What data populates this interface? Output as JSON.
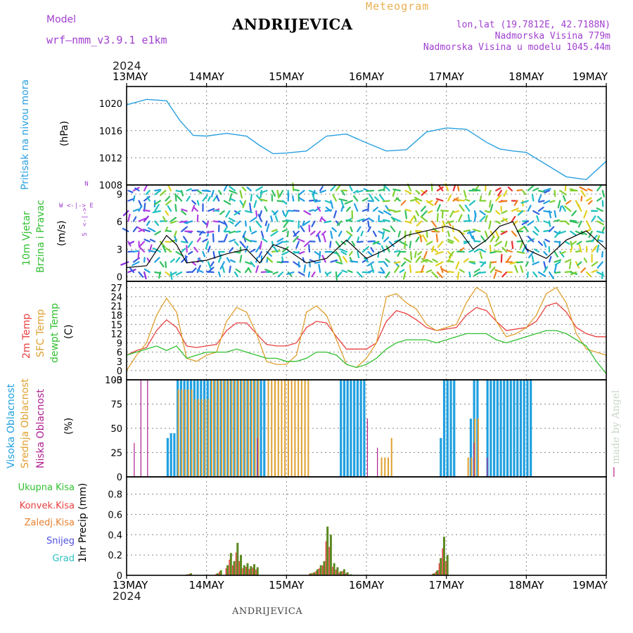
{
  "header": {
    "title": "ANDRIJEVICA",
    "model_label": "Model",
    "model_name": "wrf—nmm_v3.9.1  e1km",
    "meteogram_label": "Meteogram",
    "lonlat": "lon,lat (19.7812E, 42.7188N)",
    "altitude": "Nadmorska Visina 779m",
    "model_altitude": "Nadmorska Visina u modelu 1045.44m",
    "year": "2024",
    "footer": "ANDRIJEVICA",
    "made_by": "made by Angel"
  },
  "colors": {
    "pressure": "#2aa0e0",
    "wind_label": "#30c030",
    "temp2m": "#e84040",
    "sfc": "#e0a030",
    "dew": "#30c030",
    "high_cloud": "#20a0e0",
    "mid_cloud": "#e0a030",
    "low_cloud": "#b02090",
    "total_precip": "#30c030",
    "conv_precip": "#e84040",
    "frozen_precip": "#e88030",
    "snow": "#5050e0",
    "hail": "#30c0c0",
    "precip_bar": "#5a8a20"
  },
  "panel_labels": {
    "pressure": [
      "Pritisak na nivou mora",
      "(hPa)"
    ],
    "wind": [
      "10m  Vjetar",
      "Brzina i Pravac",
      "(m/s)"
    ],
    "wind_compass": [
      "N",
      "<-|->",
      "S",
      "W  <-|->  E"
    ],
    "temp": [
      "2m Temp",
      "SFC Temp",
      "dewpt Temp",
      "(C)"
    ],
    "cloud": [
      "Visoka Oblacnost",
      "Srednja Oblacnost",
      "Niska Oblacnost",
      "(%)"
    ],
    "precip": [
      "Ukupna Kisa",
      "Konvek.Kisa",
      "Zaledj.Kisa",
      "Snijeg",
      "Grad",
      "1hr Precip (mm)"
    ]
  },
  "chart_data": [
    {
      "type": "line",
      "name": "pressure",
      "x_ticks": [
        "13MAY",
        "14MAY",
        "15MAY",
        "16MAY",
        "17MAY",
        "18MAY",
        "19MAY"
      ],
      "ylabel": "(hPa)",
      "ylim": [
        1008,
        1022.5
      ],
      "y_ticks": [
        1008,
        1012,
        1016,
        1020
      ],
      "grid": true,
      "x_hours": [
        0,
        6,
        12,
        16,
        20,
        24,
        30,
        36,
        40,
        44,
        48,
        54,
        60,
        66,
        72,
        78,
        84,
        90,
        96,
        102,
        108,
        112,
        116,
        120,
        126,
        132,
        138,
        144
      ],
      "values": [
        1019.8,
        1020.6,
        1020.4,
        1017.5,
        1015.3,
        1015.2,
        1015.6,
        1015.2,
        1013.8,
        1012.6,
        1012.7,
        1013.0,
        1015.2,
        1015.5,
        1014.2,
        1013.0,
        1013.2,
        1015.8,
        1016.4,
        1016.2,
        1014.3,
        1013.3,
        1013.0,
        1012.8,
        1011.0,
        1009.2,
        1008.8,
        1011.5
      ]
    },
    {
      "type": "line",
      "name": "wind_speed",
      "ylabel": "(m/s)",
      "ylim": [
        -0.5,
        10
      ],
      "y_ticks": [
        0,
        3,
        6,
        9
      ],
      "grid": true,
      "x_hours": [
        0,
        6,
        12,
        15,
        18,
        24,
        30,
        36,
        40,
        44,
        48,
        54,
        60,
        66,
        72,
        78,
        84,
        90,
        96,
        100,
        104,
        108,
        112,
        116,
        120,
        126,
        132,
        138,
        144
      ],
      "values": [
        1.0,
        1.2,
        4.5,
        3.5,
        1.5,
        1.8,
        2.5,
        3.0,
        1.5,
        3.5,
        3.0,
        1.5,
        2.0,
        4.0,
        2.0,
        3.0,
        4.5,
        5.0,
        5.5,
        5.0,
        3.0,
        4.0,
        5.5,
        6.0,
        3.0,
        2.0,
        4.0,
        5.0,
        3.0
      ]
    },
    {
      "type": "line",
      "name": "temperature",
      "ylabel": "(C)",
      "ylim": [
        -3,
        29
      ],
      "y_ticks": [
        -3,
        0,
        3,
        6,
        9,
        12,
        15,
        18,
        21,
        24,
        27
      ],
      "grid": true,
      "x_hours": [
        0,
        3,
        6,
        9,
        12,
        15,
        18,
        21,
        24,
        27,
        30,
        33,
        36,
        39,
        42,
        45,
        48,
        51,
        54,
        57,
        60,
        63,
        66,
        69,
        72,
        75,
        78,
        81,
        84,
        87,
        90,
        93,
        96,
        99,
        102,
        105,
        108,
        111,
        114,
        117,
        120,
        123,
        126,
        129,
        132,
        135,
        138,
        141,
        144
      ],
      "series": [
        {
          "name": "2m Temp",
          "values": [
            5,
            6.5,
            7.5,
            13,
            16.5,
            14,
            8,
            7.5,
            8,
            8.5,
            13,
            15.5,
            15.5,
            12,
            8.5,
            8,
            8,
            9,
            14,
            16,
            15.5,
            11,
            7,
            7,
            7,
            9,
            16,
            19.5,
            18.5,
            16.5,
            14,
            13,
            13.5,
            14,
            18,
            20.5,
            19.5,
            16,
            13,
            13.5,
            14,
            16,
            21,
            22,
            19,
            14,
            12,
            11,
            11
          ]
        },
        {
          "name": "SFC Temp",
          "values": [
            0,
            5,
            9,
            18,
            23.5,
            19,
            4,
            3,
            5,
            6,
            16,
            20.5,
            19,
            12,
            3,
            2,
            2,
            5,
            19,
            21,
            18,
            10,
            2,
            1,
            4,
            9,
            24,
            25,
            22,
            20,
            15,
            13,
            14,
            15,
            22,
            27,
            25,
            16,
            11,
            12,
            14,
            18,
            25,
            27,
            22,
            12,
            7,
            6,
            5
          ]
        },
        {
          "name": "dewpt Temp",
          "values": [
            5,
            6,
            7,
            8,
            6.5,
            8,
            4,
            5,
            6,
            6,
            6,
            7,
            6,
            5,
            4,
            4,
            3,
            3,
            4,
            6,
            6,
            5,
            2,
            1,
            2,
            4,
            7,
            9,
            10,
            10,
            10,
            9,
            10,
            11,
            12,
            12,
            12,
            10,
            9,
            10,
            11,
            12,
            13,
            13,
            12,
            10,
            8,
            3,
            -1
          ]
        }
      ]
    },
    {
      "type": "bar",
      "name": "cloud_cover",
      "ylabel": "(%)",
      "ylim": [
        0,
        100
      ],
      "y_ticks": [
        0,
        25,
        50,
        75,
        100
      ],
      "grid": true,
      "series": [
        {
          "name": "Visoka Oblacnost",
          "segments": [
            [
              12,
              13,
              40
            ],
            [
              13,
              15,
              45
            ],
            [
              15,
              42,
              100
            ],
            [
              64,
              72,
              100
            ],
            [
              94,
              95,
              40
            ],
            [
              95,
              99,
              100
            ],
            [
              103,
              104,
              60
            ],
            [
              104,
              106,
              100
            ],
            [
              108,
              122,
              100
            ]
          ]
        },
        {
          "name": "Srednja Oblacnost",
          "segments": [
            [
              15,
              20,
              90
            ],
            [
              20,
              25,
              80
            ],
            [
              25,
              40,
              100
            ],
            [
              42,
              55,
              100
            ],
            [
              76,
              79,
              20
            ],
            [
              79,
              80,
              40
            ],
            [
              102,
              104,
              20
            ],
            [
              104,
              106,
              60
            ]
          ]
        },
        {
          "name": "Niska Oblacnost",
          "segments": [
            [
              2,
              3,
              35
            ],
            [
              4,
              5,
              100
            ],
            [
              6,
              7,
              100
            ],
            [
              39,
              40,
              40
            ],
            [
              72,
              73,
              60
            ],
            [
              75,
              76,
              30
            ],
            [
              104,
              105,
              35
            ],
            [
              108,
              109,
              20
            ],
            [
              146,
              147,
              10
            ]
          ]
        }
      ]
    },
    {
      "type": "bar",
      "name": "precipitation",
      "ylabel": "1hr Precip (mm)",
      "ylim": [
        0,
        0.97
      ],
      "y_ticks": [
        0,
        0.2,
        0.4,
        0.6,
        0.8
      ],
      "grid": true,
      "x_hours": [
        18,
        19,
        27,
        28,
        30,
        31,
        32,
        33,
        34,
        35,
        36,
        37,
        38,
        39,
        55,
        56,
        57,
        58,
        59,
        60,
        61,
        62,
        63,
        64,
        65,
        66,
        67,
        92,
        93,
        94,
        95,
        96
      ],
      "values": [
        0.01,
        0.02,
        0.02,
        0.05,
        0.1,
        0.22,
        0.14,
        0.32,
        0.2,
        0.1,
        0.12,
        0.09,
        0.11,
        0.08,
        0.02,
        0.03,
        0.06,
        0.1,
        0.14,
        0.48,
        0.4,
        0.12,
        0.08,
        0.04,
        0.06,
        0.03,
        0.01,
        0.02,
        0.05,
        0.17,
        0.38,
        0.2
      ]
    }
  ]
}
